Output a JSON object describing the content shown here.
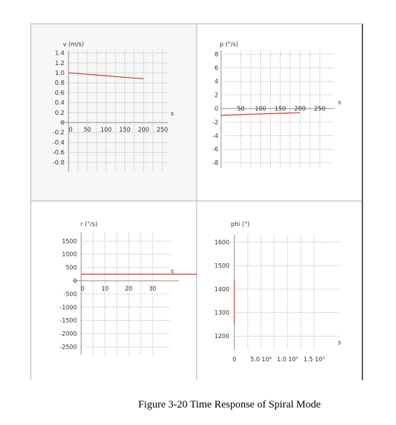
{
  "caption": "Figure 3-20 Time Response of Spiral Mode",
  "colors": {
    "series": "#c81e1e",
    "grid": "#a9a9a9",
    "panel_background": "#f7f7f7"
  },
  "chart_data": [
    {
      "id": "v",
      "type": "line",
      "ylabel": "v (m/s)",
      "xlabel": "s",
      "xlim": [
        0,
        270
      ],
      "ylim": [
        -0.9,
        1.45
      ],
      "xticks": [
        0,
        50,
        100,
        150,
        200,
        250
      ],
      "xtick_labels": [
        "0",
        "50",
        "100",
        "150",
        "200",
        "250"
      ],
      "yticks": [
        1.4,
        1.2,
        1.0,
        0.8,
        0.6,
        0.4,
        0.2,
        0,
        -0.2,
        -0.4,
        -0.6,
        -0.8
      ],
      "ytick_labels": [
        "1.4",
        "1.2",
        "1.0",
        "0.8",
        "0.6",
        "0.4",
        "0.2",
        "0",
        "-0.2",
        "-0.4",
        "-0.6",
        "-0.8"
      ],
      "grid": true,
      "series": [
        {
          "x": [
            0,
            200
          ],
          "y": [
            1.0,
            0.88
          ]
        }
      ]
    },
    {
      "id": "p",
      "type": "line",
      "ylabel": "p (°/s)",
      "xlabel": "s",
      "xlim": [
        0,
        270
      ],
      "ylim": [
        -9,
        8.5
      ],
      "xticks": [
        50,
        100,
        150,
        200,
        250
      ],
      "xtick_labels": [
        "50",
        "100",
        "150",
        "200",
        "250"
      ],
      "yticks": [
        8,
        6,
        4,
        2,
        0,
        -2,
        -4,
        -6,
        -8
      ],
      "ytick_labels": [
        "8",
        "6",
        "4",
        "2",
        "0",
        "-2",
        "-4",
        "-6",
        "-8"
      ],
      "grid": true,
      "series": [
        {
          "x": [
            0,
            200
          ],
          "y": [
            -1.0,
            -0.6
          ]
        }
      ]
    },
    {
      "id": "r",
      "type": "line",
      "ylabel": "r (°/s)",
      "xlabel": "s",
      "xlim": [
        0,
        38
      ],
      "ylim": [
        -2700,
        1700
      ],
      "xticks": [
        0,
        10,
        20,
        30
      ],
      "xtick_labels": [
        "0",
        "10",
        "20",
        "30"
      ],
      "yticks": [
        1500,
        1000,
        500,
        0,
        -500,
        -1000,
        -1500,
        -2000,
        -2500
      ],
      "ytick_labels": [
        "1500",
        "1000",
        "500",
        "0",
        "-500",
        "-1000",
        "-1500",
        "-2000",
        "-2500"
      ],
      "grid": true,
      "series": [
        {
          "x": [
            0,
            55
          ],
          "y": [
            250,
            250
          ]
        }
      ]
    },
    {
      "id": "phi",
      "type": "line",
      "ylabel": "phi (°)",
      "xlabel": "s",
      "xlim": [
        0,
        190000
      ],
      "ylim": [
        1160,
        1650
      ],
      "xticks": [
        0,
        50000,
        100000,
        150000
      ],
      "xtick_labels": [
        "0",
        "5.0 10⁴",
        "1.0 10⁵",
        "1.5 10⁵"
      ],
      "yticks": [
        1600,
        1500,
        1400,
        1300,
        1200
      ],
      "ytick_labels": [
        "1600",
        "1500",
        "1400",
        "1300",
        "1200"
      ],
      "grid": true,
      "series": [
        {
          "x": [
            0,
            0
          ],
          "y": [
            1440,
            1250
          ]
        }
      ]
    }
  ]
}
